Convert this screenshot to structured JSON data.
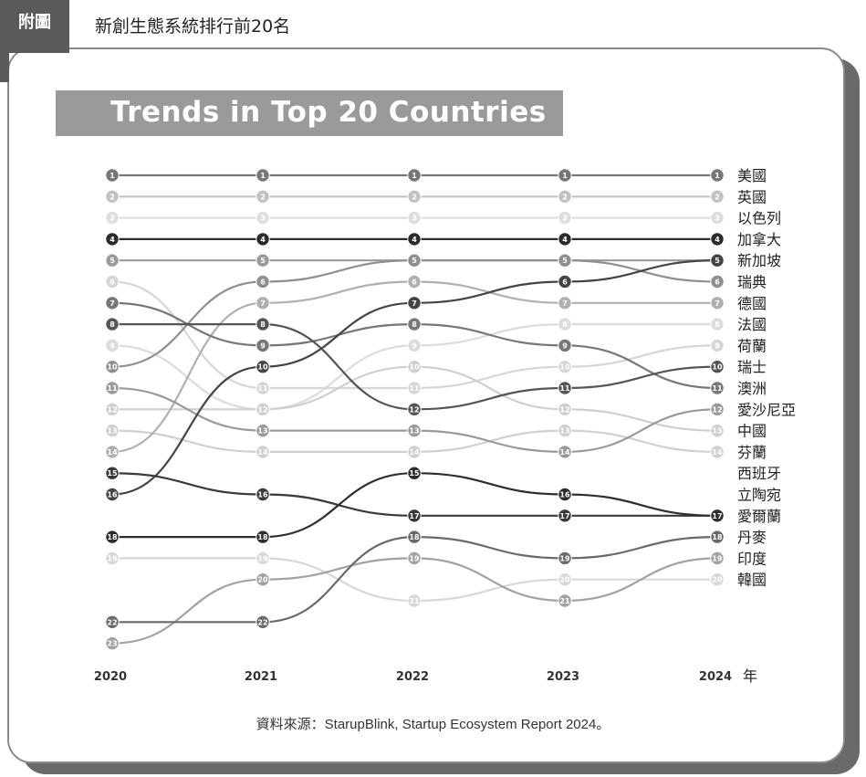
{
  "header": {
    "tab_label": "附圖",
    "figure_title": "新創生態系統排行前20名"
  },
  "chart_data": {
    "type": "line",
    "title": "Trends in Top 20 Countries",
    "x": [
      "2020",
      "2021",
      "2022",
      "2023",
      "2024"
    ],
    "xlabel": "年",
    "y_axis": "rank (1 = top, lower is better)",
    "series": [
      {
        "name": "美國",
        "ranks": [
          1,
          1,
          1,
          1,
          1
        ],
        "color": "#777777"
      },
      {
        "name": "英國",
        "ranks": [
          2,
          2,
          2,
          2,
          2
        ],
        "color": "#c2c2c2"
      },
      {
        "name": "以色列",
        "ranks": [
          3,
          3,
          3,
          3,
          3
        ],
        "color": "#dedede"
      },
      {
        "name": "加拿大",
        "ranks": [
          4,
          4,
          4,
          4,
          4
        ],
        "color": "#2b2b2b"
      },
      {
        "name": "新加坡",
        "ranks": [
          5,
          5,
          5,
          5,
          5
        ],
        "color": "#9a9a9a"
      },
      {
        "name": "瑞典",
        "ranks": [
          10,
          6,
          5,
          5,
          6
        ],
        "color": "#8f8f8f"
      },
      {
        "name": "德國",
        "ranks": [
          7,
          9,
          8,
          9,
          11
        ],
        "color": "#777777"
      },
      {
        "name": "法國",
        "ranks": [
          9,
          12,
          9,
          8,
          8
        ],
        "color": "#dcdcdc"
      },
      {
        "name": "荷蘭",
        "ranks": [
          6,
          11,
          11,
          10,
          9
        ],
        "color": "#d6d6d6"
      },
      {
        "name": "瑞士",
        "ranks": [
          8,
          8,
          12,
          11,
          10
        ],
        "color": "#555555"
      },
      {
        "name": "澳洲",
        "ranks": [
          11,
          13,
          13,
          14,
          12
        ],
        "color": "#9a9a9a"
      },
      {
        "name": "愛沙尼亞",
        "ranks": [
          12,
          12,
          10,
          12,
          13
        ],
        "color": "#cfcfcf"
      },
      {
        "name": "中國",
        "ranks": [
          13,
          14,
          14,
          13,
          14
        ],
        "color": "#d0d0d0"
      },
      {
        "name": "芬蘭",
        "ranks": [
          14,
          7,
          6,
          7,
          7
        ],
        "color": "#b0b0b0"
      },
      {
        "name": "西班牙",
        "ranks": [
          15,
          16,
          17,
          17,
          17
        ],
        "color": "#3a3a3a"
      },
      {
        "name": "立陶宛",
        "ranks": [
          16,
          10,
          7,
          6,
          5
        ],
        "color": "#444444"
      },
      {
        "name": "愛爾蘭",
        "ranks": [
          18,
          18,
          15,
          16,
          17
        ],
        "color": "#2e2e2e"
      },
      {
        "name": "丹麥",
        "ranks": [
          22,
          22,
          18,
          19,
          18
        ],
        "color": "#6a6a6a"
      },
      {
        "name": "印度",
        "ranks": [
          23,
          20,
          19,
          21,
          19
        ],
        "color": "#a2a2a2"
      },
      {
        "name": "韓國",
        "ranks": [
          19,
          19,
          21,
          20,
          20
        ],
        "color": "#d8d8d8"
      }
    ],
    "end_labels": [
      "美國",
      "英國",
      "以色列",
      "加拿大",
      "新加坡",
      "瑞典",
      "德國",
      "法國",
      "荷蘭",
      "瑞士",
      "澳洲",
      "愛沙尼亞",
      "中國",
      "芬蘭",
      "西班牙",
      "立陶宛",
      "愛爾蘭",
      "丹麥",
      "印度",
      "韓國"
    ],
    "grid": false,
    "legend": "right"
  },
  "footer": {
    "source": "資料來源：StarupBlink, Startup Ecosystem Report 2024。"
  }
}
